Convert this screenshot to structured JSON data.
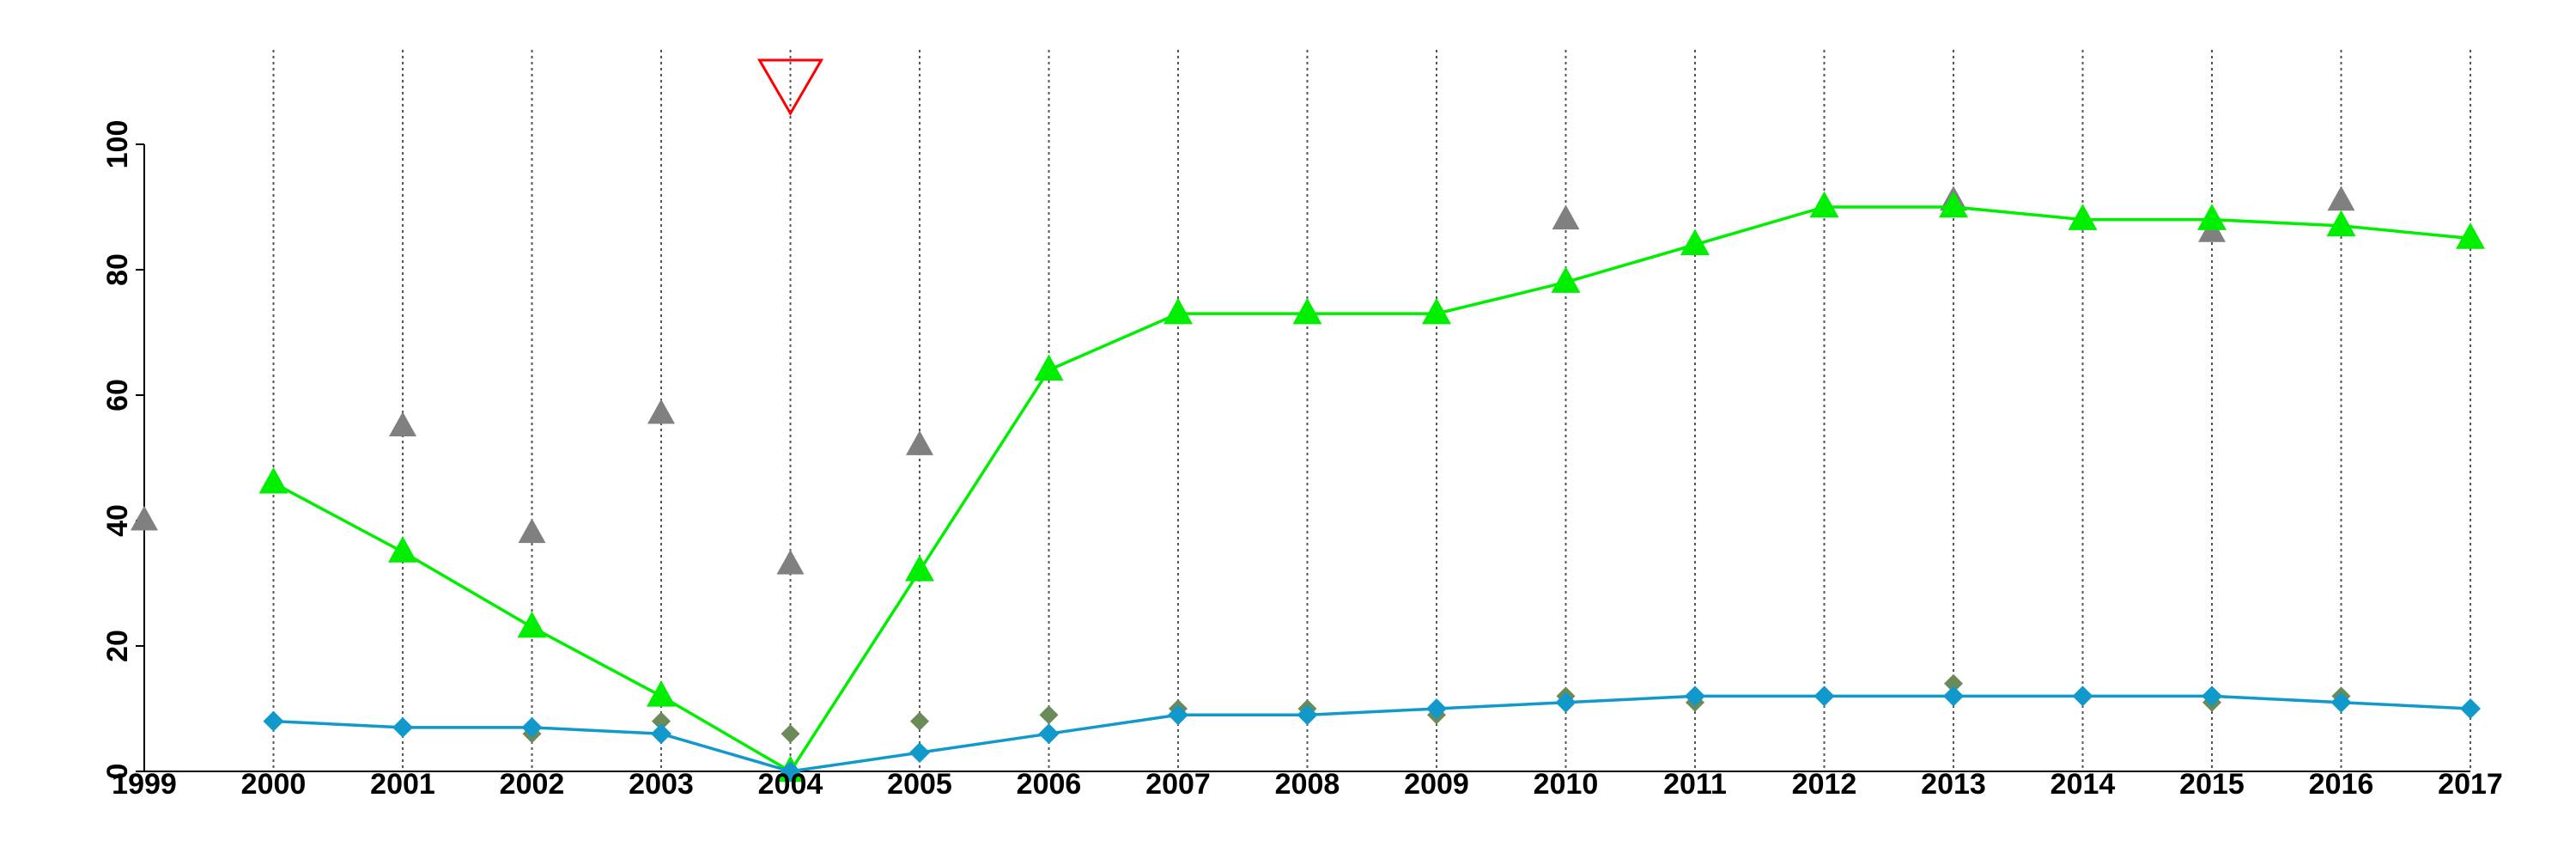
{
  "chart_data": {
    "type": "line",
    "categories": [
      "1999",
      "2000",
      "2001",
      "2002",
      "2003",
      "2004",
      "2005",
      "2006",
      "2007",
      "2008",
      "2009",
      "2010",
      "2011",
      "2012",
      "2013",
      "2014",
      "2015",
      "2016",
      "2017"
    ],
    "ylim": [
      0,
      100
    ],
    "yticks": [
      "0",
      "20",
      "40",
      "60",
      "80",
      "100"
    ],
    "xlabel": "",
    "ylabel": "",
    "grid": "vertical dotted lines at each year",
    "series": [
      {
        "kind": "line",
        "marker": "triangle-up",
        "color": "#00ee00",
        "values": [
          null,
          46,
          35,
          23,
          12,
          0,
          32,
          64,
          73,
          73,
          73,
          78,
          84,
          90,
          90,
          88,
          88,
          87,
          85
        ]
      },
      {
        "kind": "line",
        "marker": "diamond",
        "color": "#1199cc",
        "values": [
          null,
          8,
          7,
          7,
          6,
          0,
          3,
          6,
          9,
          9,
          10,
          11,
          12,
          12,
          12,
          12,
          12,
          11,
          10
        ]
      },
      {
        "kind": "scatter",
        "marker": "triangle-up",
        "color": "#808080",
        "values": [
          40,
          null,
          55,
          38,
          57,
          33,
          52,
          null,
          null,
          null,
          73,
          88,
          null,
          null,
          91,
          null,
          86,
          91,
          null
        ]
      },
      {
        "kind": "scatter",
        "marker": "diamond",
        "color": "#6a8a5a",
        "values": [
          null,
          null,
          null,
          6,
          8,
          6,
          8,
          9,
          10,
          10,
          9,
          12,
          11,
          null,
          14,
          null,
          11,
          12,
          null
        ]
      }
    ],
    "annotations": [
      {
        "type": "marker",
        "shape": "triangle-down-outline",
        "color": "#ff0000",
        "category": "2004",
        "position": "above plot"
      }
    ]
  }
}
